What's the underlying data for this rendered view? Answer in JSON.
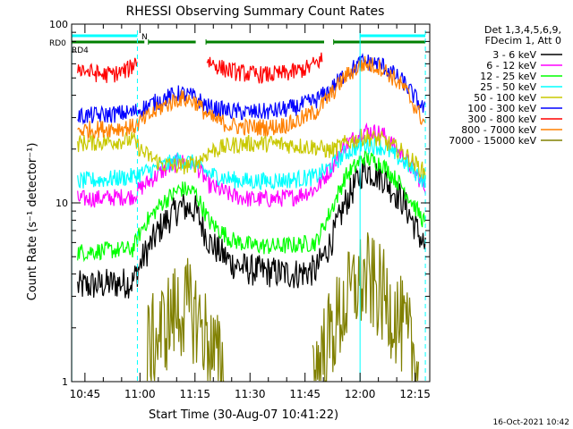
{
  "chart_data": {
    "type": "line",
    "title": "RHESSI Observing Summary Count Rates",
    "xlabel": "Start Time (30-Aug-07 10:41:22)",
    "ylabel": "Count Rate (s⁻¹ detector⁻¹)",
    "yscale": "log",
    "ylim": [
      1,
      100
    ],
    "xlim_minutes": [
      41.37,
      139.0
    ],
    "ytick_labels": [
      "1",
      "10",
      "100"
    ],
    "xticks": [
      {
        "label": "10:45",
        "minute": 45
      },
      {
        "label": "11:00",
        "minute": 60
      },
      {
        "label": "11:15",
        "minute": 75
      },
      {
        "label": "11:30",
        "minute": 90
      },
      {
        "label": "11:45",
        "minute": 105
      },
      {
        "label": "12:00",
        "minute": 120
      },
      {
        "label": "12:15",
        "minute": 135
      }
    ],
    "timestamp": "16-Oct-2021 10:42",
    "legend": {
      "placement": "right",
      "header": [
        "Det 1,3,4,5,6,9,",
        "FDecim 1, Att 0"
      ],
      "entries": [
        {
          "label": "3 - 6 keV",
          "color": "#000000"
        },
        {
          "label": "6 - 12 keV",
          "color": "#ff00ff"
        },
        {
          "label": "12 - 25 keV",
          "color": "#00ff00"
        },
        {
          "label": "25 - 50 keV",
          "color": "#00ffff"
        },
        {
          "label": "50 - 100 keV",
          "color": "#c8c800"
        },
        {
          "label": "100 - 300 keV",
          "color": "#0000ff"
        },
        {
          "label": "300 - 800 keV",
          "color": "#ff0000"
        },
        {
          "label": "800 - 7000 keV",
          "color": "#ff8000"
        },
        {
          "label": "7000 - 15000 keV",
          "color": "#808000"
        }
      ]
    },
    "flags": [
      {
        "label": "N",
        "color": "#00ffff",
        "segments": [
          [
            41.4,
            59.3
          ],
          [
            120.0,
            137.8
          ]
        ]
      },
      {
        "label": "RD0",
        "color": "#008000",
        "segments": [
          [
            41.4,
            61.2
          ],
          [
            62.3,
            75.2
          ],
          [
            78.0,
            110.2
          ],
          [
            112.8,
            137.8
          ]
        ]
      },
      {
        "label": "RD4",
        "color": "#008000",
        "segments": []
      }
    ],
    "vlines": [
      {
        "minute": 41.4,
        "style": "solid",
        "color": "#00ffff"
      },
      {
        "minute": 59.3,
        "style": "dashed",
        "color": "#00ffff"
      },
      {
        "minute": 120.0,
        "style": "solid",
        "color": "#00ffff"
      },
      {
        "minute": 137.8,
        "style": "dashed",
        "color": "#00ffff"
      }
    ],
    "series": [
      {
        "name": "3 - 6 keV",
        "color": "#000000",
        "x": [
          43,
          50,
          58,
          61,
          66,
          71,
          75,
          79,
          85,
          90,
          96,
          102,
          108,
          112,
          116,
          121,
          126,
          132,
          138
        ],
        "y": [
          3.4,
          3.5,
          3.6,
          5.0,
          7.5,
          9.5,
          9.2,
          6.0,
          4.6,
          4.2,
          4.1,
          4.0,
          4.2,
          6.0,
          10.0,
          15.5,
          14.0,
          10.0,
          5.5
        ]
      },
      {
        "name": "6 - 12 keV",
        "color": "#ff00ff",
        "x": [
          43,
          50,
          58,
          61,
          66,
          71,
          75,
          79,
          85,
          90,
          96,
          102,
          108,
          112,
          116,
          121,
          126,
          132,
          138
        ],
        "y": [
          10.5,
          10.6,
          10.9,
          12.5,
          15.0,
          17.0,
          16.5,
          12.5,
          11.0,
          10.5,
          10.5,
          10.8,
          12.0,
          15.5,
          21.0,
          25.5,
          24.5,
          18.0,
          12.0
        ]
      },
      {
        "name": "12 - 25 keV",
        "color": "#00ff00",
        "x": [
          43,
          50,
          58,
          61,
          66,
          71,
          75,
          79,
          85,
          90,
          96,
          102,
          108,
          112,
          116,
          121,
          126,
          132,
          138
        ],
        "y": [
          5.3,
          5.4,
          5.5,
          7.5,
          10.0,
          12.0,
          11.5,
          7.8,
          6.2,
          5.8,
          5.7,
          5.8,
          6.0,
          9.0,
          14.0,
          18.0,
          16.5,
          12.0,
          7.5
        ]
      },
      {
        "name": "25 - 50 keV",
        "color": "#00ffff",
        "x": [
          43,
          50,
          58,
          61,
          66,
          71,
          75,
          79,
          85,
          90,
          96,
          102,
          108,
          112,
          116,
          121,
          126,
          132,
          138
        ],
        "y": [
          13.2,
          13.5,
          14.0,
          14.8,
          16.0,
          17.5,
          16.5,
          14.5,
          13.5,
          13.2,
          13.3,
          13.5,
          14.0,
          16.0,
          19.0,
          21.5,
          20.5,
          17.0,
          13.0
        ]
      },
      {
        "name": "50 - 100 keV",
        "color": "#c8c800",
        "x": [
          43,
          50,
          58,
          61,
          66,
          71,
          75,
          79,
          85,
          90,
          96,
          102,
          108,
          112,
          116,
          121,
          126,
          132,
          138
        ],
        "y": [
          21.5,
          22.0,
          22.5,
          19.0,
          16.5,
          16.0,
          16.5,
          19.5,
          21.0,
          21.5,
          21.5,
          21.0,
          20.5,
          19.5,
          21.5,
          23.5,
          22.5,
          19.0,
          14.5
        ]
      },
      {
        "name": "100 - 300 keV",
        "color": "#0000ff",
        "x": [
          43,
          50,
          58,
          61,
          66,
          71,
          75,
          79,
          85,
          90,
          96,
          102,
          108,
          112,
          116,
          121,
          126,
          132,
          138
        ],
        "y": [
          30.5,
          31.0,
          32.0,
          34.0,
          38.0,
          41.0,
          39.0,
          34.0,
          32.5,
          32.0,
          32.5,
          34.0,
          37.5,
          43.0,
          53.0,
          62.0,
          59.0,
          47.0,
          32.0
        ]
      },
      {
        "name": "300 - 800 keV",
        "color": "#ff0000",
        "x": [
          43,
          46,
          50,
          54,
          57,
          59.2,
          78.2,
          82,
          86,
          90,
          94,
          98,
          102,
          106,
          109.8
        ],
        "y": [
          58.0,
          54.0,
          52.0,
          53.0,
          56.0,
          63.0,
          63.0,
          57.0,
          54.0,
          52.5,
          52.0,
          52.5,
          54.0,
          57.0,
          64.0
        ]
      },
      {
        "name": "800 - 7000 keV",
        "color": "#ff8000",
        "x": [
          43,
          50,
          58,
          61,
          66,
          71,
          75,
          79,
          85,
          90,
          96,
          102,
          108,
          112,
          116,
          121,
          126,
          132,
          138
        ],
        "y": [
          25.5,
          26.0,
          26.5,
          29.0,
          34.5,
          38.5,
          37.0,
          30.0,
          27.0,
          26.5,
          26.5,
          28.0,
          32.5,
          40.0,
          51.0,
          60.0,
          57.0,
          44.0,
          27.0
        ]
      },
      {
        "name": "7000 - 15000 keV",
        "color": "#808000",
        "x": [
          62,
          65,
          69,
          73,
          76,
          79,
          82,
          108,
          112,
          116,
          119,
          122,
          126,
          130,
          133,
          136
        ],
        "y": [
          1.5,
          1.8,
          2.4,
          2.6,
          2.2,
          1.6,
          1.2,
          1.2,
          1.8,
          2.7,
          3.5,
          3.7,
          3.0,
          2.3,
          1.7,
          1.2
        ]
      }
    ]
  }
}
